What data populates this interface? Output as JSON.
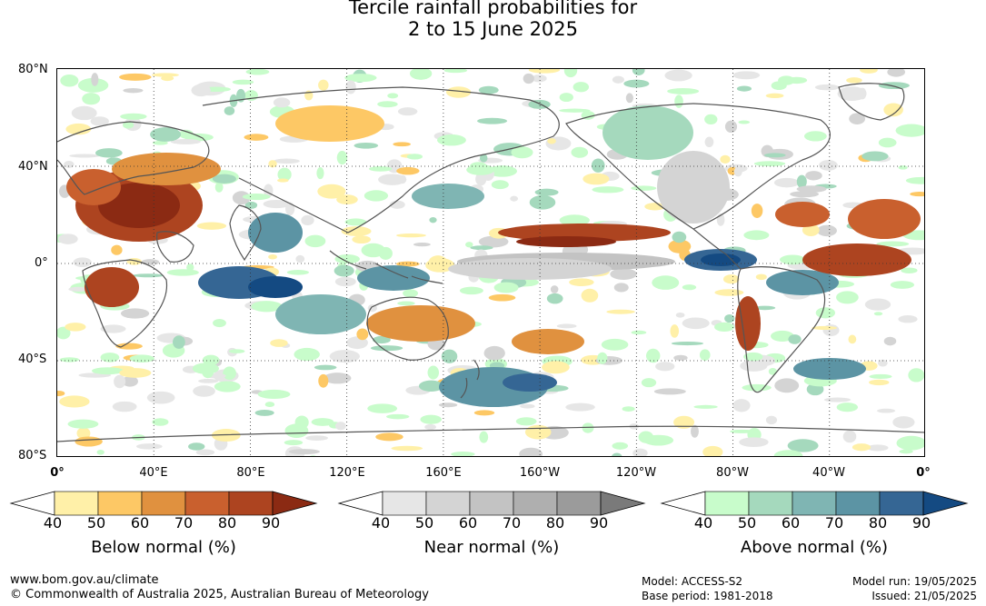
{
  "title": {
    "line1": "Tercile rainfall probabilities for",
    "line2": "2 to 15 June 2025"
  },
  "map": {
    "lat_labels": [
      "80°N",
      "40°N",
      "0°",
      "40°S",
      "80°S"
    ],
    "lon_labels": [
      "0°",
      "40°E",
      "80°E",
      "120°E",
      "160°E",
      "160°W",
      "120°W",
      "80°W",
      "40°W",
      "0°"
    ],
    "colors": {
      "below": [
        "#fff0a8",
        "#fdc865",
        "#e0913f",
        "#c9602e",
        "#ad4420",
        "#8b2a13"
      ],
      "near": [
        "#e6e6e6",
        "#d4d4d4",
        "#c3c3c3",
        "#afafaf",
        "#9b9b9b",
        "#7a7a7a"
      ],
      "above": [
        "#c8fccb",
        "#a5d9bd",
        "#7fb5b3",
        "#5c94a4",
        "#356694",
        "#144a82"
      ]
    }
  },
  "legends": {
    "below": {
      "title": "Below normal (%)",
      "ticks": [
        "40",
        "50",
        "60",
        "70",
        "80",
        "90"
      ]
    },
    "near": {
      "title": "Near normal (%)",
      "ticks": [
        "40",
        "50",
        "60",
        "70",
        "80",
        "90"
      ]
    },
    "above": {
      "title": "Above normal (%)",
      "ticks": [
        "40",
        "50",
        "60",
        "70",
        "80",
        "90"
      ]
    }
  },
  "footer": {
    "website": "www.bom.gov.au/climate",
    "copyright": "© Commonwealth of Australia 2025, Australian Bureau of Meteorology",
    "model": "Model: ACCESS-S2",
    "base_period": "Base period: 1981-2018",
    "model_run": "Model run: 19/05/2025",
    "issued": "Issued: 21/05/2025"
  }
}
